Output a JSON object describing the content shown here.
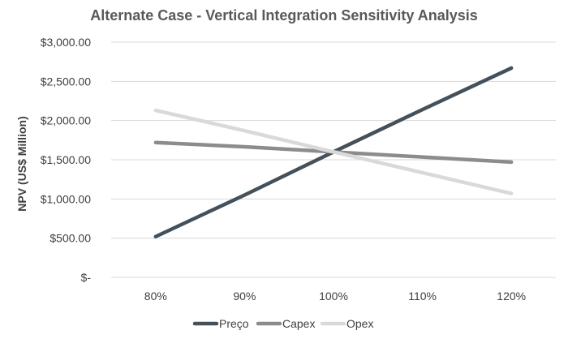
{
  "chart_data": {
    "type": "line",
    "title": "Alternate Case - Vertical Integration Sensitivity Analysis",
    "ylabel": "NPV (US$ Million)",
    "xlabel": "",
    "categories": [
      "80%",
      "90%",
      "100%",
      "110%",
      "120%"
    ],
    "y_ticks": [
      "$-",
      "$500.00",
      "$1,000.00",
      "$1,500.00",
      "$2,000.00",
      "$2,500.00",
      "$3,000.00"
    ],
    "y_tick_values": [
      0,
      500,
      1000,
      1500,
      2000,
      2500,
      3000
    ],
    "ylim": [
      0,
      3000
    ],
    "grid": true,
    "legend_position": "bottom",
    "series": [
      {
        "name": "Preço",
        "color": "#44505a",
        "values": [
          520,
          1050,
          1600,
          2140,
          2670
        ]
      },
      {
        "name": "Capex",
        "color": "#8c8c8c",
        "values": [
          1720,
          1665,
          1600,
          1535,
          1470
        ]
      },
      {
        "name": "Opex",
        "color": "#d9d9d9",
        "values": [
          2130,
          1870,
          1600,
          1335,
          1070
        ]
      }
    ]
  }
}
